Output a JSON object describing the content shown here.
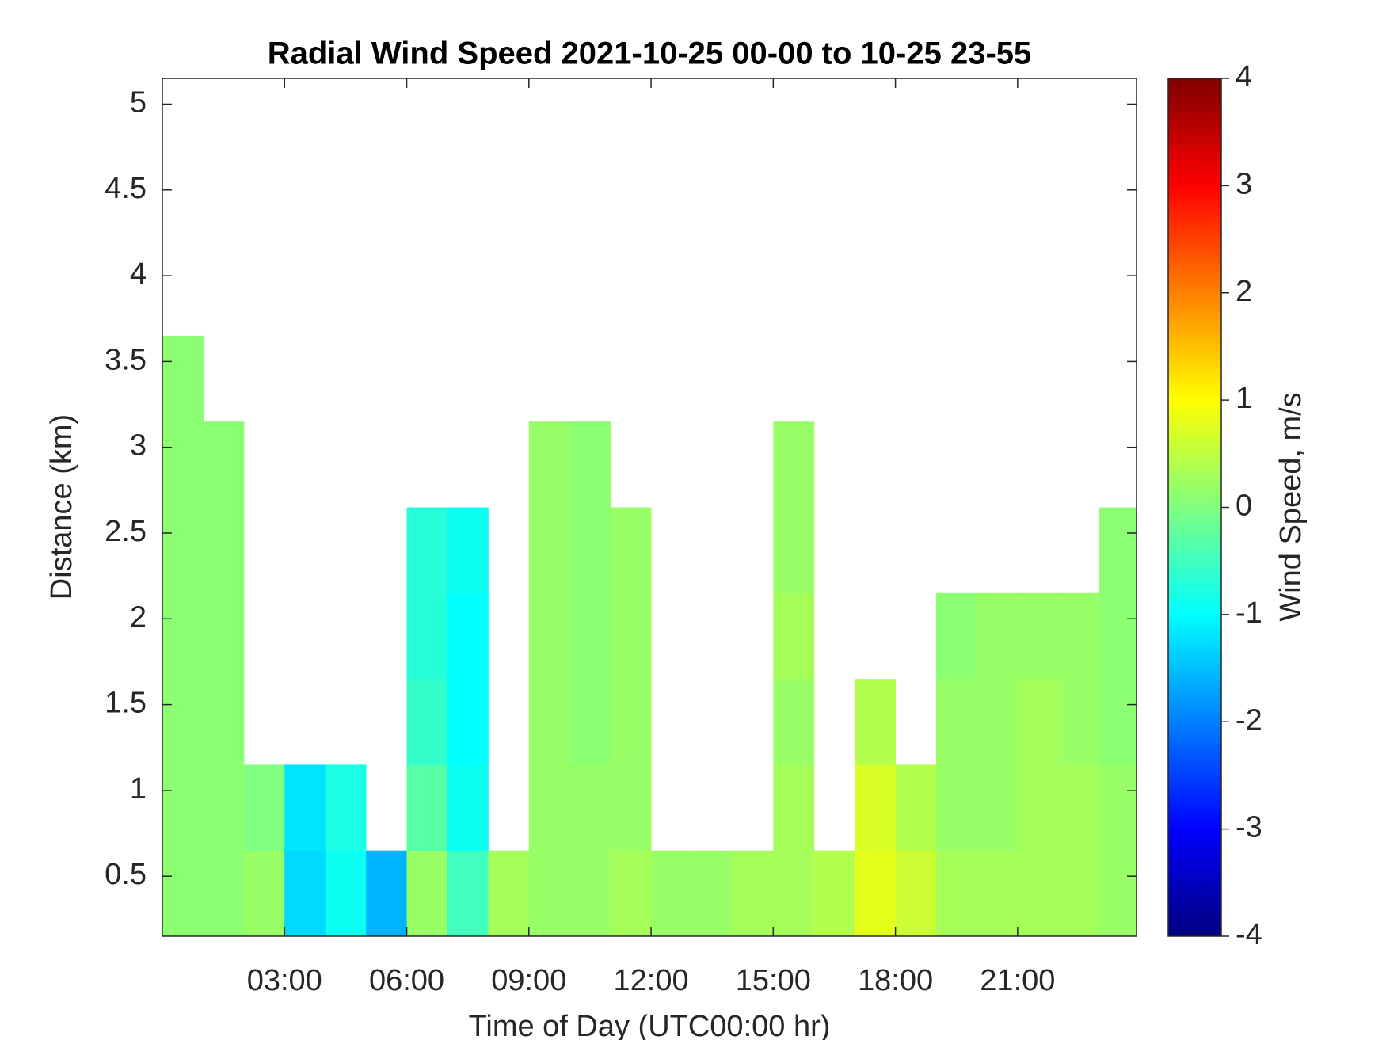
{
  "chart_data": {
    "type": "heatmap",
    "title": "Radial Wind Speed 2021-10-25 00-00 to 10-25 23-55",
    "x_label": "Time of Day (UTC00:00 hr)",
    "y_label": "Distance (km)",
    "colorbar_label": "Wind Speed, m/s",
    "colormap": "jet",
    "x_edges": [
      0,
      1,
      2,
      3,
      4,
      5,
      6,
      7,
      8,
      9,
      10,
      11,
      12,
      13,
      14,
      15,
      16,
      17,
      18,
      19,
      20,
      21,
      22,
      23,
      23.92
    ],
    "y_edges": [
      0.15,
      0.65,
      1.15,
      1.65,
      2.15,
      2.65,
      3.15,
      3.65,
      4.15,
      4.65,
      5.15
    ],
    "values": [
      [
        0.1,
        0.1,
        0.2,
        -1.3,
        -0.9,
        -1.6,
        0.2,
        -0.5,
        0.3,
        0.2,
        0.2,
        0.3,
        0.2,
        0.2,
        0.3,
        0.3,
        0.4,
        0.8,
        0.6,
        0.3,
        0.3,
        0.3,
        0.3,
        0.2
      ],
      [
        0.1,
        0.1,
        0.0,
        -1.2,
        -0.8,
        null,
        -0.3,
        -0.9,
        null,
        0.2,
        0.2,
        0.2,
        null,
        null,
        null,
        0.3,
        null,
        0.7,
        0.4,
        0.2,
        0.2,
        0.3,
        0.3,
        0.2
      ],
      [
        0.1,
        0.1,
        null,
        null,
        null,
        null,
        -0.6,
        -1.0,
        null,
        0.2,
        0.1,
        0.2,
        null,
        null,
        null,
        0.2,
        null,
        0.4,
        null,
        0.2,
        0.2,
        0.3,
        0.2,
        0.1
      ],
      [
        0.1,
        0.1,
        null,
        null,
        null,
        null,
        -0.7,
        -1.0,
        null,
        0.2,
        0.1,
        0.2,
        null,
        null,
        null,
        0.3,
        null,
        null,
        null,
        0.1,
        0.2,
        0.2,
        0.2,
        0.1
      ],
      [
        0.1,
        0.1,
        null,
        null,
        null,
        null,
        -0.7,
        -0.9,
        null,
        0.2,
        0.1,
        0.2,
        null,
        null,
        null,
        0.2,
        null,
        null,
        null,
        null,
        null,
        null,
        null,
        0.1
      ],
      [
        0.1,
        0.1,
        null,
        null,
        null,
        null,
        null,
        null,
        null,
        0.2,
        0.1,
        null,
        null,
        null,
        null,
        0.2,
        null,
        null,
        null,
        null,
        null,
        null,
        null,
        null
      ],
      [
        0.1,
        null,
        null,
        null,
        null,
        null,
        null,
        null,
        null,
        null,
        null,
        null,
        null,
        null,
        null,
        null,
        null,
        null,
        null,
        null,
        null,
        null,
        null,
        null
      ],
      [
        null,
        null,
        null,
        null,
        null,
        null,
        null,
        null,
        null,
        null,
        null,
        null,
        null,
        null,
        null,
        null,
        null,
        null,
        null,
        null,
        null,
        null,
        null,
        null
      ],
      [
        null,
        null,
        null,
        null,
        null,
        null,
        null,
        null,
        null,
        null,
        null,
        null,
        null,
        null,
        null,
        null,
        null,
        null,
        null,
        null,
        null,
        null,
        null,
        null
      ],
      [
        null,
        null,
        null,
        null,
        null,
        null,
        null,
        null,
        null,
        null,
        null,
        null,
        null,
        null,
        null,
        null,
        null,
        null,
        null,
        null,
        null,
        null,
        null,
        null
      ]
    ],
    "xlim": [
      0,
      23.92
    ],
    "xticks": [
      {
        "value": 3,
        "label": "03:00"
      },
      {
        "value": 6,
        "label": "06:00"
      },
      {
        "value": 9,
        "label": "09:00"
      },
      {
        "value": 12,
        "label": "12:00"
      },
      {
        "value": 15,
        "label": "15:00"
      },
      {
        "value": 18,
        "label": "18:00"
      },
      {
        "value": 21,
        "label": "21:00"
      }
    ],
    "ylim": [
      0.15,
      5.15
    ],
    "yticks": [
      0.5,
      1,
      1.5,
      2,
      2.5,
      3,
      3.5,
      4,
      4.5,
      5
    ],
    "clim": [
      -4,
      4
    ],
    "cticks": [
      -4,
      -3,
      -2,
      -1,
      0,
      1,
      2,
      3,
      4
    ]
  }
}
